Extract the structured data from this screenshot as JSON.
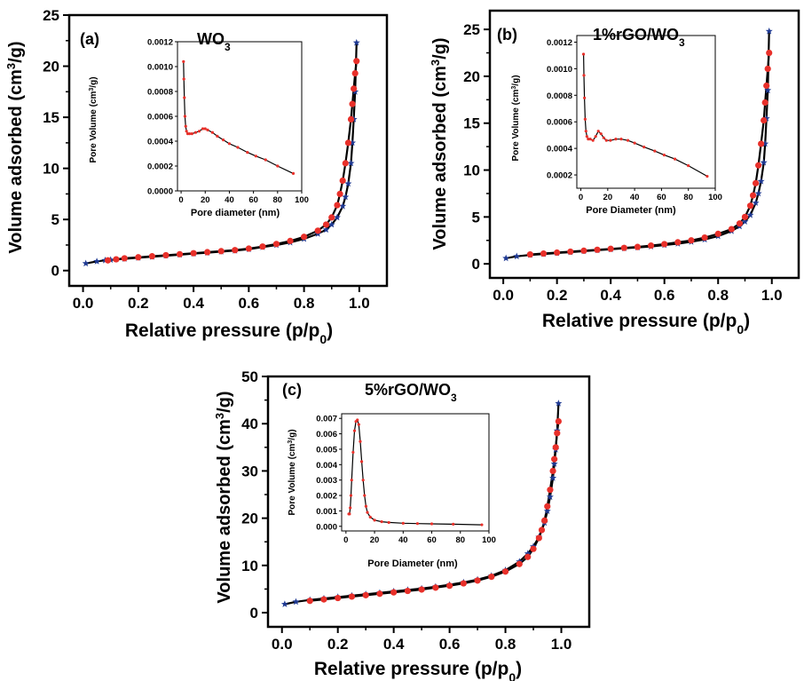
{
  "chart_data": [
    {
      "type": "line",
      "panel_label": "(a)",
      "title": "WO3",
      "title_main": "WO",
      "title_sub": "3",
      "xlabel_main": "Relative pressure (p/p",
      "xlabel_sub": "0",
      "xlabel_end": ")",
      "ylabel_pre": "Volume adsorbed (cm",
      "ylabel_sup": "3",
      "ylabel_post": "/g)",
      "xlim": [
        -0.05,
        1.1
      ],
      "ylim": [
        -1.5,
        25
      ],
      "xticks": [
        0.0,
        0.2,
        0.4,
        0.6,
        0.8,
        1.0
      ],
      "xtick_labels": [
        "0.0",
        "0.2",
        "0.4",
        "0.6",
        "0.8",
        "1.0"
      ],
      "yticks": [
        0,
        5,
        10,
        15,
        20,
        25
      ],
      "ytick_labels": [
        "0",
        "5",
        "10",
        "15",
        "20",
        "25"
      ],
      "grid": false,
      "series": [
        {
          "role": "adsorption",
          "marker": "star",
          "color": "#1f3a93",
          "x": [
            0.01,
            0.05,
            0.08,
            0.1,
            0.15,
            0.2,
            0.25,
            0.3,
            0.35,
            0.4,
            0.45,
            0.5,
            0.55,
            0.6,
            0.65,
            0.7,
            0.75,
            0.8,
            0.85,
            0.88,
            0.9,
            0.92,
            0.94,
            0.95,
            0.96,
            0.97,
            0.975,
            0.98,
            0.985,
            0.99
          ],
          "y": [
            0.7,
            0.9,
            1.0,
            1.05,
            1.15,
            1.25,
            1.35,
            1.45,
            1.55,
            1.65,
            1.75,
            1.85,
            1.95,
            2.1,
            2.3,
            2.5,
            2.75,
            3.1,
            3.6,
            4.0,
            4.5,
            5.2,
            6.3,
            7.2,
            8.5,
            10.5,
            12.5,
            14.8,
            17.5,
            22.3
          ]
        },
        {
          "role": "desorption",
          "marker": "circle",
          "color": "#e8302a",
          "x": [
            0.99,
            0.985,
            0.98,
            0.975,
            0.97,
            0.96,
            0.95,
            0.94,
            0.93,
            0.92,
            0.9,
            0.88,
            0.85,
            0.8,
            0.75,
            0.7,
            0.65,
            0.6,
            0.55,
            0.5,
            0.45,
            0.4,
            0.35,
            0.3,
            0.25,
            0.2,
            0.15,
            0.12,
            0.09
          ],
          "y": [
            20.5,
            19.3,
            17.8,
            16.3,
            14.8,
            12.5,
            10.5,
            8.8,
            7.5,
            6.4,
            5.2,
            4.5,
            3.9,
            3.3,
            2.9,
            2.6,
            2.35,
            2.15,
            2.0,
            1.9,
            1.8,
            1.7,
            1.6,
            1.5,
            1.4,
            1.3,
            1.2,
            1.1,
            1.0
          ]
        }
      ],
      "inset": {
        "xlabel": "Pore diameter (nm)",
        "ylabel_pre": "Pore Volume (cm",
        "ylabel_sup": "3",
        "ylabel_post": "/g)",
        "xlim": [
          -3,
          100
        ],
        "ylim": [
          0,
          0.0012
        ],
        "xticks": [
          0,
          20,
          40,
          60,
          80,
          100
        ],
        "xtick_labels": [
          "0",
          "20",
          "40",
          "60",
          "80",
          "100"
        ],
        "yticks": [
          0,
          0.0002,
          0.0004,
          0.0006,
          0.0008,
          0.001,
          0.0012
        ],
        "ytick_labels": [
          "0.0000",
          "0.0002",
          "0.0004",
          "0.0006",
          "0.0008",
          "0.0010",
          "0.0012"
        ],
        "x": [
          2,
          2.3,
          2.7,
          3.2,
          3.8,
          4.5,
          5.5,
          7,
          9,
          12,
          15,
          18,
          20,
          22,
          26,
          30,
          35,
          40,
          47,
          55,
          62,
          70,
          80,
          93
        ],
        "y": [
          0.00104,
          0.0009,
          0.00075,
          0.0006,
          0.00052,
          0.00048,
          0.00046,
          0.00046,
          0.00046,
          0.00047,
          0.00048,
          0.0005,
          0.0005,
          0.00049,
          0.00047,
          0.00044,
          0.00041,
          0.00038,
          0.00035,
          0.00031,
          0.00028,
          0.00025,
          0.0002,
          0.00014
        ]
      }
    },
    {
      "type": "line",
      "panel_label": "(b)",
      "title": "1%rGO/WO3",
      "title_main": "1%rGO/WO",
      "title_sub": "3",
      "xlabel_main": "Relative pressure (p/p",
      "xlabel_sub": "0",
      "xlabel_end": ")",
      "ylabel_pre": "Volume adsorbed (cm",
      "ylabel_sup": "3",
      "ylabel_post": "/g)",
      "xlim": [
        -0.05,
        1.1
      ],
      "ylim": [
        -1.5,
        27
      ],
      "xticks": [
        0.0,
        0.2,
        0.4,
        0.6,
        0.8,
        1.0
      ],
      "xtick_labels": [
        "0.0",
        "0.2",
        "0.4",
        "0.6",
        "0.8",
        "1.0"
      ],
      "yticks": [
        0,
        5,
        10,
        15,
        20,
        25
      ],
      "ytick_labels": [
        "0",
        "5",
        "10",
        "15",
        "20",
        "25"
      ],
      "grid": false,
      "series": [
        {
          "role": "adsorption",
          "marker": "star",
          "color": "#1f3a93",
          "x": [
            0.01,
            0.05,
            0.1,
            0.15,
            0.2,
            0.25,
            0.3,
            0.35,
            0.4,
            0.45,
            0.5,
            0.55,
            0.6,
            0.65,
            0.7,
            0.75,
            0.8,
            0.85,
            0.88,
            0.9,
            0.92,
            0.94,
            0.95,
            0.96,
            0.97,
            0.975,
            0.98,
            0.985,
            0.99
          ],
          "y": [
            0.6,
            0.8,
            0.95,
            1.05,
            1.15,
            1.25,
            1.35,
            1.45,
            1.55,
            1.65,
            1.75,
            1.85,
            2.0,
            2.15,
            2.35,
            2.6,
            2.95,
            3.5,
            4.0,
            4.5,
            5.2,
            6.5,
            7.5,
            8.8,
            10.8,
            12.8,
            15.5,
            18.5,
            24.8
          ]
        },
        {
          "role": "desorption",
          "marker": "circle",
          "color": "#e8302a",
          "x": [
            0.99,
            0.985,
            0.98,
            0.975,
            0.97,
            0.96,
            0.95,
            0.94,
            0.93,
            0.92,
            0.9,
            0.88,
            0.85,
            0.8,
            0.75,
            0.7,
            0.65,
            0.6,
            0.55,
            0.5,
            0.45,
            0.4,
            0.35,
            0.3,
            0.25,
            0.2,
            0.15,
            0.1
          ],
          "y": [
            22.5,
            20.8,
            19.0,
            17.2,
            15.3,
            12.8,
            10.5,
            8.6,
            7.3,
            6.2,
            5.0,
            4.3,
            3.7,
            3.2,
            2.8,
            2.5,
            2.3,
            2.1,
            1.95,
            1.8,
            1.7,
            1.6,
            1.5,
            1.4,
            1.3,
            1.2,
            1.1,
            1.0
          ]
        }
      ],
      "inset": {
        "xlabel": "Pore Diameter (nm)",
        "ylabel_pre": "Pore Volume (cm",
        "ylabel_sup": "3",
        "ylabel_post": "/g)",
        "xlim": [
          -3,
          100
        ],
        "ylim": [
          0.0001,
          0.00125
        ],
        "xticks": [
          0,
          20,
          40,
          60,
          80,
          100
        ],
        "xtick_labels": [
          "0",
          "20",
          "40",
          "60",
          "80",
          "100"
        ],
        "yticks": [
          0.0002,
          0.0004,
          0.0006,
          0.0008,
          0.001,
          0.0012
        ],
        "ytick_labels": [
          "0.0002",
          "0.0004",
          "0.0006",
          "0.0008",
          "0.0010",
          "0.0012"
        ],
        "x": [
          2,
          2.3,
          2.7,
          3.2,
          3.8,
          4.5,
          5.5,
          7,
          9,
          11,
          13,
          15,
          17,
          19,
          22,
          26,
          30,
          35,
          40,
          47,
          55,
          62,
          70,
          80,
          94
        ],
        "y": [
          0.00111,
          0.00095,
          0.00078,
          0.00062,
          0.00053,
          0.00049,
          0.00047,
          0.00047,
          0.00046,
          0.00049,
          0.00053,
          0.00051,
          0.00048,
          0.00046,
          0.00046,
          0.00047,
          0.00047,
          0.00046,
          0.00044,
          0.00041,
          0.00038,
          0.00035,
          0.00032,
          0.00027,
          0.00019
        ]
      }
    },
    {
      "type": "line",
      "panel_label": "(c)",
      "title": "5%rGO/WO3",
      "title_main": "5%rGO/WO",
      "title_sub": "3",
      "xlabel_main": "Relative pressure (p/p",
      "xlabel_sub": "0",
      "xlabel_end": ")",
      "ylabel_pre": "Volume adsorbed (cm",
      "ylabel_sup": "3",
      "ylabel_post": "/g)",
      "xlim": [
        -0.05,
        1.1
      ],
      "ylim": [
        -3,
        50
      ],
      "xticks": [
        0.0,
        0.2,
        0.4,
        0.6,
        0.8,
        1.0
      ],
      "xtick_labels": [
        "0.0",
        "0.2",
        "0.4",
        "0.6",
        "0.8",
        "1.0"
      ],
      "yticks": [
        0,
        10,
        20,
        30,
        40,
        50
      ],
      "ytick_labels": [
        "0",
        "10",
        "20",
        "30",
        "40",
        "50"
      ],
      "grid": false,
      "series": [
        {
          "role": "adsorption",
          "marker": "star",
          "color": "#1f3a93",
          "x": [
            0.01,
            0.05,
            0.1,
            0.15,
            0.2,
            0.25,
            0.3,
            0.35,
            0.4,
            0.45,
            0.5,
            0.55,
            0.6,
            0.65,
            0.7,
            0.75,
            0.8,
            0.85,
            0.88,
            0.9,
            0.92,
            0.94,
            0.95,
            0.96,
            0.97,
            0.975,
            0.98,
            0.985,
            0.99
          ],
          "y": [
            1.8,
            2.3,
            2.7,
            3.0,
            3.3,
            3.6,
            3.9,
            4.2,
            4.5,
            4.8,
            5.1,
            5.5,
            5.9,
            6.4,
            7.0,
            7.8,
            9.0,
            10.8,
            12.5,
            14.0,
            16.0,
            19.0,
            21.5,
            24.5,
            28.5,
            31.5,
            34.5,
            38.5,
            44.3
          ]
        },
        {
          "role": "desorption",
          "marker": "circle",
          "color": "#e8302a",
          "x": [
            0.99,
            0.985,
            0.98,
            0.975,
            0.97,
            0.96,
            0.95,
            0.94,
            0.93,
            0.92,
            0.9,
            0.88,
            0.85,
            0.8,
            0.75,
            0.7,
            0.65,
            0.6,
            0.55,
            0.5,
            0.45,
            0.4,
            0.35,
            0.3,
            0.25,
            0.2,
            0.15,
            0.1
          ],
          "y": [
            40.5,
            38.0,
            35.0,
            32.5,
            30.0,
            26.0,
            22.5,
            19.5,
            17.5,
            15.8,
            13.5,
            11.8,
            10.3,
            8.7,
            7.6,
            6.8,
            6.2,
            5.7,
            5.3,
            4.9,
            4.6,
            4.3,
            4.0,
            3.7,
            3.4,
            3.1,
            2.8,
            2.5
          ]
        }
      ],
      "inset": {
        "xlabel": "Pore Diameter (nm)",
        "ylabel_pre": "Pore Volume (cm",
        "ylabel_sup": "3",
        "ylabel_post": "/g)",
        "xlim": [
          -3,
          100
        ],
        "ylim": [
          -0.0003,
          0.0073
        ],
        "xticks": [
          0,
          20,
          40,
          60,
          80,
          100
        ],
        "xtick_labels": [
          "0",
          "20",
          "40",
          "60",
          "80",
          "100"
        ],
        "yticks": [
          0,
          0.001,
          0.002,
          0.003,
          0.004,
          0.005,
          0.006,
          0.007
        ],
        "ytick_labels": [
          "0.000",
          "0.001",
          "0.002",
          "0.003",
          "0.004",
          "0.005",
          "0.006",
          "0.007"
        ],
        "x": [
          2,
          2.5,
          3,
          3.5,
          4,
          5,
          6,
          7,
          8,
          9,
          10,
          11,
          12,
          13,
          14,
          15,
          17,
          20,
          25,
          30,
          40,
          50,
          60,
          75,
          95
        ],
        "y": [
          0.0008,
          0.0008,
          0.0012,
          0.002,
          0.003,
          0.0048,
          0.0062,
          0.0068,
          0.0069,
          0.0066,
          0.0055,
          0.0042,
          0.003,
          0.002,
          0.0013,
          0.0009,
          0.0006,
          0.0004,
          0.0003,
          0.00025,
          0.0002,
          0.00018,
          0.00016,
          0.00014,
          0.0001
        ]
      }
    }
  ]
}
